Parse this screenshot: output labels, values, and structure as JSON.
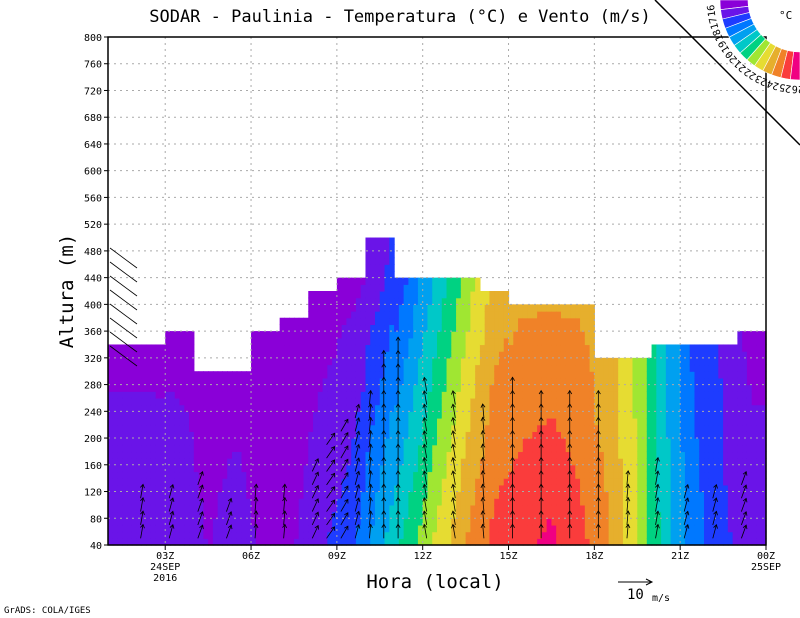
{
  "chart_data": {
    "type": "heatmap",
    "title": "SODAR - Paulinia - Temperatura (°C) e Vento (m/s)",
    "xlabel": "Hora (local)",
    "ylabel": "Altura (m)",
    "xlim": [
      1,
      24
    ],
    "ylim": [
      40,
      800
    ],
    "yticks": [
      40,
      80,
      120,
      160,
      200,
      240,
      280,
      320,
      360,
      400,
      440,
      480,
      520,
      560,
      600,
      640,
      680,
      720,
      760,
      800
    ],
    "xticks": [
      {
        "hour": 3,
        "label": "03Z",
        "sub1": "24SEP",
        "sub2": "2016"
      },
      {
        "hour": 6,
        "label": "06Z"
      },
      {
        "hour": 9,
        "label": "09Z"
      },
      {
        "hour": 12,
        "label": "12Z"
      },
      {
        "hour": 15,
        "label": "15Z"
      },
      {
        "hour": 18,
        "label": "18Z"
      },
      {
        "hour": 21,
        "label": "21Z"
      },
      {
        "hour": 24,
        "label": "00Z",
        "sub1": "25SEP"
      }
    ],
    "grid": true,
    "colorbar": {
      "unit": "°C",
      "labels": [
        "16",
        "17",
        "18",
        "19",
        "20",
        "21",
        "22",
        "23",
        "24",
        "25",
        "26"
      ],
      "colors": [
        "#8a00d8",
        "#6a14e8",
        "#1e3cff",
        "#0078ff",
        "#00a0f0",
        "#00c8c8",
        "#00d282",
        "#a0e632",
        "#e6dc32",
        "#e6af2d",
        "#f08228",
        "#fa3c3c",
        "#f00082"
      ],
      "min": 16,
      "step": 0.85
    },
    "temperature_columns": [
      {
        "hour": 1,
        "top": 340,
        "t_bottom": 17.6,
        "t_top": 16.6
      },
      {
        "hour": 2,
        "top": 340,
        "t_bottom": 17.6,
        "t_top": 16.6
      },
      {
        "hour": 3,
        "top": 360,
        "t_bottom": 17.6,
        "t_top": 16.5
      },
      {
        "hour": 4,
        "top": 300,
        "t_bottom": 16.8,
        "t_top": 16.4
      },
      {
        "hour": 5,
        "top": 300,
        "t_bottom": 17.3,
        "t_top": 16.5
      },
      {
        "hour": 6,
        "top": 360,
        "t_bottom": 16.6,
        "t_top": 16.3
      },
      {
        "hour": 7,
        "top": 380,
        "t_bottom": 16.8,
        "t_top": 16.2
      },
      {
        "hour": 8,
        "top": 420,
        "t_bottom": 17.6,
        "t_top": 16.4
      },
      {
        "hour": 9,
        "top": 440,
        "t_bottom": 18.2,
        "t_top": 16.6
      },
      {
        "hour": 10,
        "top": 500,
        "t_bottom": 20.0,
        "t_top": 17.0
      },
      {
        "hour": 11,
        "top": 440,
        "t_bottom": 21.5,
        "t_top": 18.6
      },
      {
        "hour": 12,
        "top": 440,
        "t_bottom": 23.0,
        "t_top": 20.4
      },
      {
        "hour": 13,
        "top": 440,
        "t_bottom": 24.5,
        "t_top": 22.2
      },
      {
        "hour": 14,
        "top": 420,
        "t_bottom": 25.6,
        "t_top": 24.0
      },
      {
        "hour": 15,
        "top": 400,
        "t_bottom": 26.0,
        "t_top": 24.4
      },
      {
        "hour": 16,
        "top": 400,
        "t_bottom": 26.4,
        "t_top": 24.4
      },
      {
        "hour": 17,
        "top": 400,
        "t_bottom": 25.6,
        "t_top": 24.4
      },
      {
        "hour": 18,
        "top": 320,
        "t_bottom": 24.6,
        "t_top": 24.0
      },
      {
        "hour": 19,
        "top": 320,
        "t_bottom": 22.8,
        "t_top": 22.6
      },
      {
        "hour": 20,
        "top": 340,
        "t_bottom": 20.6,
        "t_top": 20.2
      },
      {
        "hour": 21,
        "top": 340,
        "t_bottom": 19.0,
        "t_top": 18.3
      },
      {
        "hour": 22,
        "top": 340,
        "t_bottom": 17.8,
        "t_top": 17.6
      },
      {
        "hour": 23,
        "top": 360,
        "t_bottom": 17.5,
        "t_top": 16.5
      }
    ],
    "wind_columns": [
      {
        "hour": 2,
        "top": 120,
        "dir_deg": 10
      },
      {
        "hour": 3,
        "top": 120,
        "dir_deg": 15
      },
      {
        "hour": 4,
        "top": 140,
        "dir_deg": 20
      },
      {
        "hour": 5,
        "top": 100,
        "dir_deg": 20
      },
      {
        "hour": 6,
        "top": 120,
        "dir_deg": 5
      },
      {
        "hour": 7,
        "top": 120,
        "dir_deg": 5
      },
      {
        "hour": 8,
        "top": 160,
        "dir_deg": 25
      },
      {
        "hour": 8.5,
        "top": 200,
        "dir_deg": 35
      },
      {
        "hour": 9,
        "top": 220,
        "dir_deg": 30
      },
      {
        "hour": 9.5,
        "top": 240,
        "dir_deg": 15
      },
      {
        "hour": 10,
        "top": 260,
        "dir_deg": 5
      },
      {
        "hour": 10.5,
        "top": 320,
        "dir_deg": 0
      },
      {
        "hour": 11,
        "top": 340,
        "dir_deg": 0
      },
      {
        "hour": 12,
        "top": 280,
        "dir_deg": 350
      },
      {
        "hour": 13,
        "top": 260,
        "dir_deg": 350
      },
      {
        "hour": 14,
        "top": 240,
        "dir_deg": 355
      },
      {
        "hour": 15,
        "top": 280,
        "dir_deg": 0
      },
      {
        "hour": 16,
        "top": 260,
        "dir_deg": 0
      },
      {
        "hour": 17,
        "top": 260,
        "dir_deg": 0
      },
      {
        "hour": 18,
        "top": 260,
        "dir_deg": 0
      },
      {
        "hour": 19,
        "top": 140,
        "dir_deg": 5
      },
      {
        "hour": 20,
        "top": 160,
        "dir_deg": 10
      },
      {
        "hour": 21,
        "top": 120,
        "dir_deg": 15
      },
      {
        "hour": 22,
        "top": 120,
        "dir_deg": 15
      },
      {
        "hour": 23,
        "top": 140,
        "dir_deg": 20
      }
    ],
    "vector_reference": {
      "value": "10",
      "unit": "m/s"
    }
  },
  "footer": "GrADS: COLA/IGES"
}
